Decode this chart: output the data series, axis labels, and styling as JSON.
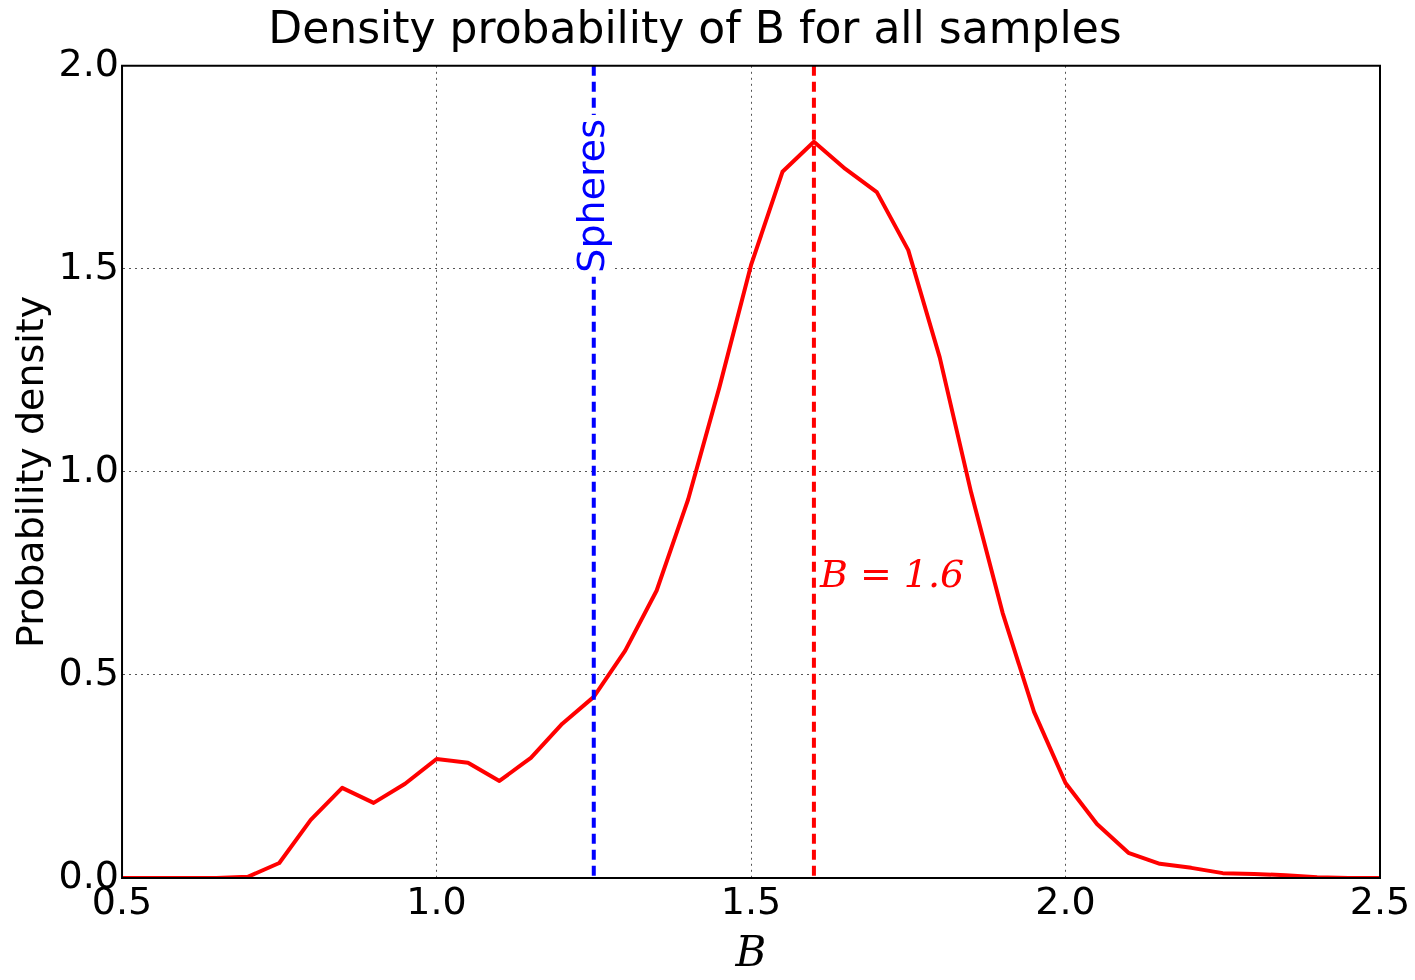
{
  "chart_data": {
    "type": "line",
    "title": "Density probability of B for all samples",
    "xlabel": "B",
    "ylabel": "Probability density",
    "x": [
      0.5,
      0.55,
      0.6,
      0.65,
      0.7,
      0.75,
      0.8,
      0.85,
      0.9,
      0.95,
      1.0,
      1.05,
      1.1,
      1.15,
      1.2,
      1.25,
      1.3,
      1.35,
      1.4,
      1.45,
      1.5,
      1.55,
      1.6,
      1.65,
      1.7,
      1.75,
      1.8,
      1.85,
      1.9,
      1.95,
      2.0,
      2.05,
      2.1,
      2.15,
      2.2,
      2.25,
      2.3,
      2.35,
      2.4,
      2.45,
      2.5
    ],
    "series": [
      {
        "color": "#ff0000",
        "values": [
          0,
          0,
          0,
          0,
          0.003,
          0.037,
          0.143,
          0.222,
          0.185,
          0.232,
          0.293,
          0.284,
          0.239,
          0.296,
          0.38,
          0.446,
          0.56,
          0.708,
          0.932,
          1.21,
          1.509,
          1.739,
          1.813,
          1.746,
          1.689,
          1.546,
          1.282,
          0.949,
          0.653,
          0.409,
          0.234,
          0.133,
          0.062,
          0.035,
          0.025,
          0.012,
          0.01,
          0.007,
          0.002,
          0,
          0
        ]
      }
    ],
    "xlim": [
      0.5,
      2.5
    ],
    "xticks": [
      {
        "value": 0.5,
        "label": "0.5"
      },
      {
        "value": 1,
        "label": "1.0"
      },
      {
        "value": 1.5,
        "label": "1.5"
      },
      {
        "value": 2,
        "label": "2.0"
      },
      {
        "value": 2.5,
        "label": "2.5"
      }
    ],
    "ylim": [
      0,
      2
    ],
    "yticks": [
      {
        "value": 0,
        "label": "0.0"
      },
      {
        "value": 0.5,
        "label": "0.5"
      },
      {
        "value": 1,
        "label": "1.0"
      },
      {
        "value": 1.5,
        "label": "1.5"
      },
      {
        "value": 2,
        "label": "2.0"
      }
    ],
    "ref_lines": [
      {
        "axis": "x",
        "value": 1.25,
        "label": "Spheres",
        "color": "#0000ff",
        "line_style": "dashed"
      },
      {
        "axis": "x",
        "value": 1.6,
        "label": "B = 1.6",
        "color": "#ff0000",
        "line_style": "dashed"
      }
    ],
    "grid": true,
    "marker": "none",
    "line_style": "solid",
    "legend": false
  }
}
